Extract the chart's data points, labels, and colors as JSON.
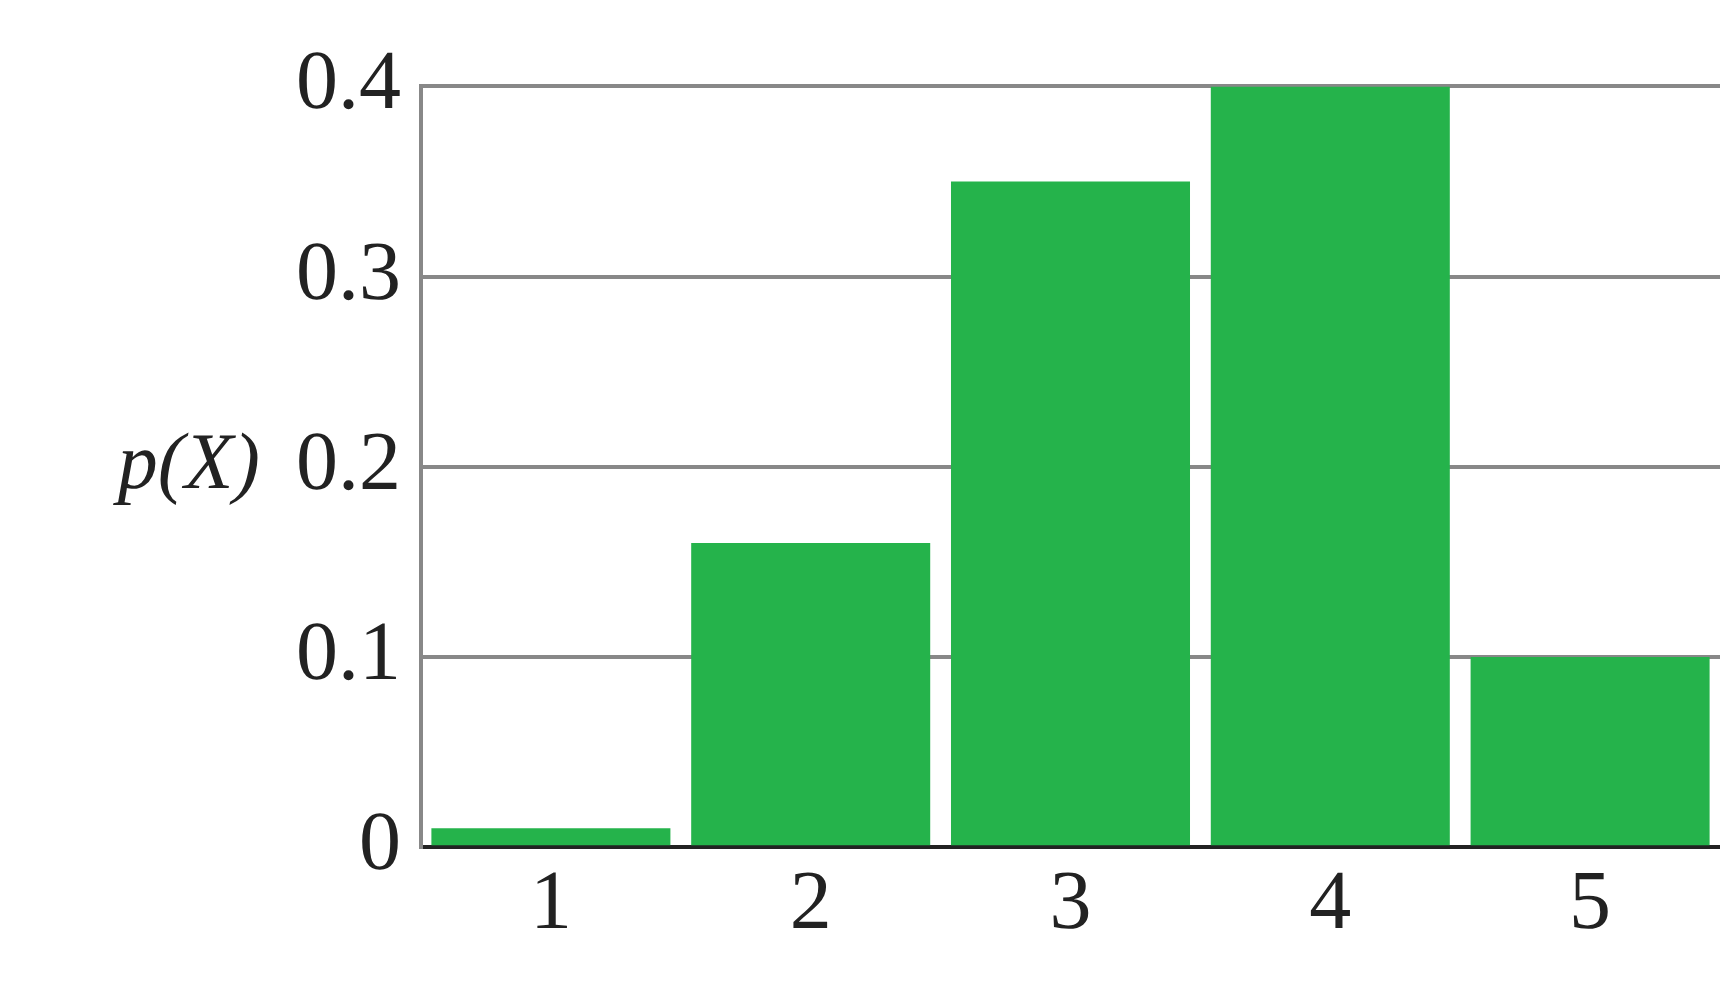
{
  "chart_data": {
    "type": "bar",
    "ylabel": "p(X)",
    "categories": [
      "1",
      "2",
      "3",
      "4",
      "5"
    ],
    "values": [
      0.01,
      0.16,
      0.35,
      0.4,
      0.1
    ],
    "color": "#25b34b",
    "ylim": [
      0,
      0.4
    ],
    "yticks": [
      0,
      0.1,
      0.2,
      0.3,
      0.4
    ],
    "grid": "y"
  }
}
